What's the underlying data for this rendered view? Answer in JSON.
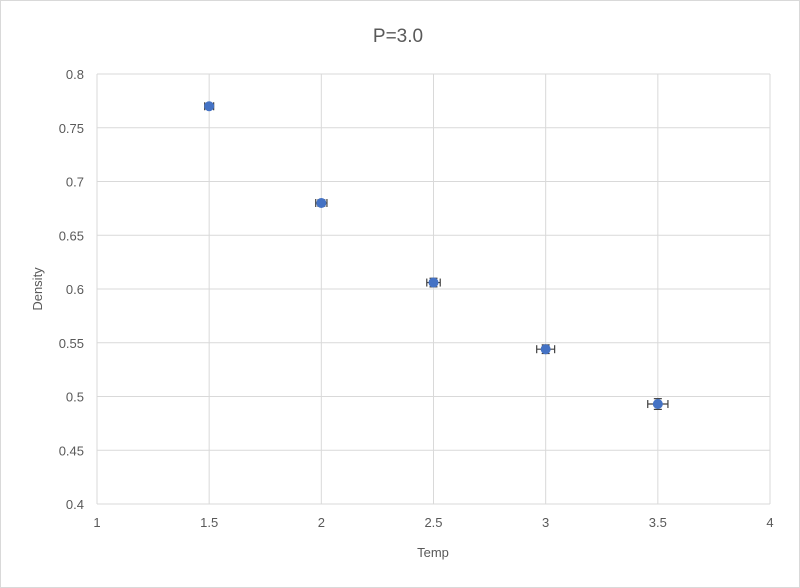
{
  "chart_data": {
    "type": "scatter",
    "title": "P=3.0",
    "xlabel": "Temp",
    "ylabel": "Density",
    "xlim": [
      1,
      4
    ],
    "ylim": [
      0.4,
      0.8
    ],
    "x_ticks": [
      "1",
      "1.5",
      "2",
      "2.5",
      "3",
      "3.5",
      "4"
    ],
    "y_ticks": [
      "0.4",
      "0.45",
      "0.5",
      "0.55",
      "0.6",
      "0.65",
      "0.7",
      "0.75",
      "0.8"
    ],
    "grid": true,
    "series": [
      {
        "marker_color": "#4472c4",
        "points": [
          {
            "x": 1.5,
            "y": 0.77,
            "xerr": 0.02,
            "yerr": 0.002
          },
          {
            "x": 2.0,
            "y": 0.68,
            "xerr": 0.025,
            "yerr": 0.003
          },
          {
            "x": 2.5,
            "y": 0.606,
            "xerr": 0.03,
            "yerr": 0.004
          },
          {
            "x": 3.0,
            "y": 0.544,
            "xerr": 0.04,
            "yerr": 0.004
          },
          {
            "x": 3.5,
            "y": 0.493,
            "xerr": 0.045,
            "yerr": 0.005
          }
        ]
      }
    ]
  }
}
